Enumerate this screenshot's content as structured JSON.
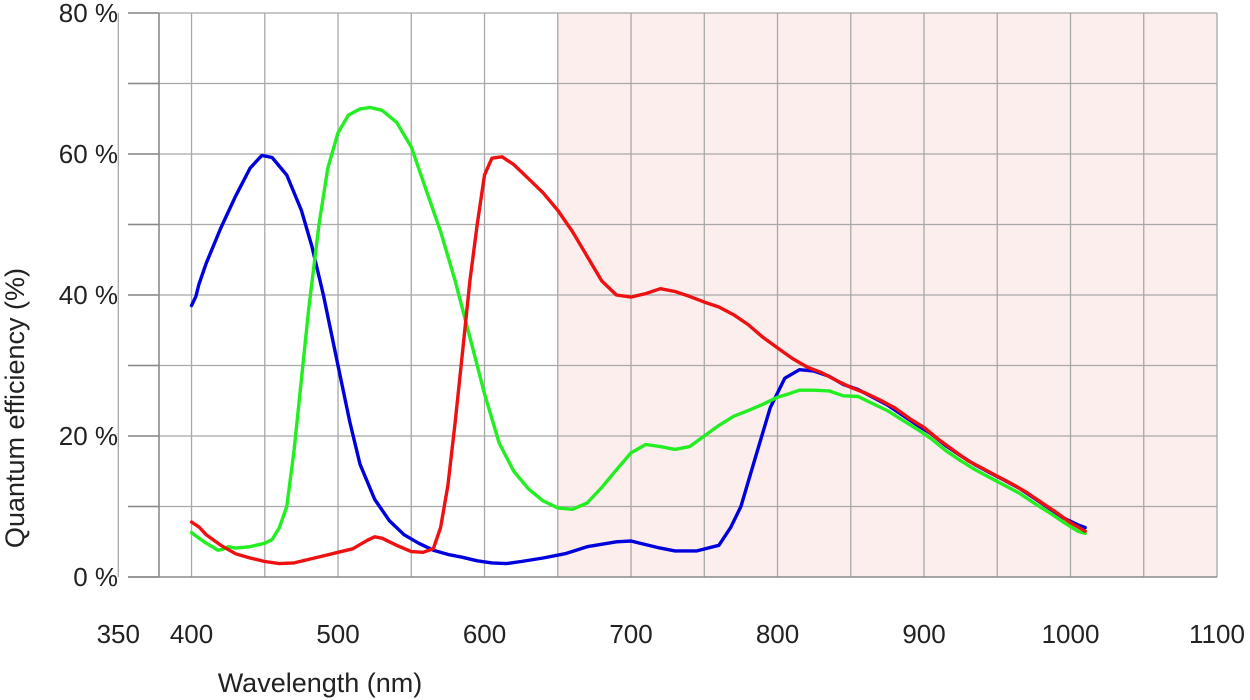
{
  "chart_data": {
    "type": "line",
    "title": "",
    "xlabel": "Wavelength (nm)",
    "ylabel": "Quantum efficiency (%)",
    "xlim": [
      330,
      1100
    ],
    "ylim": [
      0,
      80
    ],
    "x_ticks": [
      350,
      400,
      500,
      600,
      700,
      800,
      900,
      1000,
      1100
    ],
    "x_tick_labels": [
      "350",
      "400",
      "500",
      "600",
      "700",
      "800",
      "900",
      "1000",
      "1100"
    ],
    "y_ticks": [
      0,
      20,
      40,
      60,
      80
    ],
    "y_tick_labels": [
      "0 %",
      "20 %",
      "40 %",
      "60 %",
      "80 %"
    ],
    "x_gridlines": [
      350,
      400,
      450,
      500,
      550,
      600,
      650,
      700,
      750,
      800,
      850,
      900,
      950,
      1000,
      1050,
      1100
    ],
    "y_gridlines": [
      0,
      10,
      20,
      30,
      40,
      50,
      60,
      70,
      80
    ],
    "grid": true,
    "legend": "none",
    "shaded_region": {
      "x_range": [
        650,
        1100
      ],
      "color": "#fdeeee"
    },
    "series": [
      {
        "color": "#0000dd",
        "points": [
          [
            400,
            38.5
          ],
          [
            403,
            39.8
          ],
          [
            405,
            41.5
          ],
          [
            410,
            44.5
          ],
          [
            420,
            49.5
          ],
          [
            430,
            54
          ],
          [
            440,
            58
          ],
          [
            448,
            59.8
          ],
          [
            455,
            59.5
          ],
          [
            465,
            57
          ],
          [
            475,
            52
          ],
          [
            482,
            47
          ],
          [
            490,
            40
          ],
          [
            500,
            30
          ],
          [
            508,
            22
          ],
          [
            515,
            16
          ],
          [
            525,
            11
          ],
          [
            535,
            8
          ],
          [
            545,
            6
          ],
          [
            555,
            4.8
          ],
          [
            565,
            3.8
          ],
          [
            575,
            3.2
          ],
          [
            585,
            2.8
          ],
          [
            595,
            2.3
          ],
          [
            605,
            2
          ],
          [
            615,
            1.9
          ],
          [
            625,
            2.2
          ],
          [
            640,
            2.7
          ],
          [
            655,
            3.3
          ],
          [
            670,
            4.3
          ],
          [
            690,
            5
          ],
          [
            700,
            5.1
          ],
          [
            710,
            4.6
          ],
          [
            720,
            4.1
          ],
          [
            730,
            3.7
          ],
          [
            745,
            3.7
          ],
          [
            760,
            4.5
          ],
          [
            768,
            7
          ],
          [
            775,
            10
          ],
          [
            785,
            17
          ],
          [
            795,
            24
          ],
          [
            805,
            28.2
          ],
          [
            815,
            29.4
          ],
          [
            825,
            29.2
          ],
          [
            835,
            28.5
          ],
          [
            845,
            27.3
          ],
          [
            855,
            26.6
          ],
          [
            865,
            25.5
          ],
          [
            875,
            24.4
          ],
          [
            885,
            23
          ],
          [
            895,
            21.6
          ],
          [
            905,
            20.3
          ],
          [
            915,
            18.6
          ],
          [
            925,
            17.2
          ],
          [
            935,
            15.9
          ],
          [
            945,
            14.8
          ],
          [
            955,
            13.7
          ],
          [
            965,
            12.6
          ],
          [
            975,
            11.2
          ],
          [
            985,
            9.8
          ],
          [
            995,
            8.4
          ],
          [
            1005,
            7.4
          ],
          [
            1010,
            7
          ]
        ]
      },
      {
        "color": "#22ee22",
        "points": [
          [
            400,
            6.3
          ],
          [
            405,
            5.5
          ],
          [
            410,
            4.8
          ],
          [
            415,
            4.2
          ],
          [
            418,
            3.8
          ],
          [
            421,
            3.9
          ],
          [
            425,
            4.3
          ],
          [
            430,
            4.1
          ],
          [
            440,
            4.3
          ],
          [
            450,
            4.8
          ],
          [
            455,
            5.3
          ],
          [
            460,
            7
          ],
          [
            465,
            10
          ],
          [
            470,
            18
          ],
          [
            475,
            28
          ],
          [
            480,
            38
          ],
          [
            487,
            50
          ],
          [
            493,
            58
          ],
          [
            500,
            63
          ],
          [
            507,
            65.5
          ],
          [
            515,
            66.4
          ],
          [
            522,
            66.6
          ],
          [
            530,
            66.2
          ],
          [
            540,
            64.5
          ],
          [
            550,
            61
          ],
          [
            560,
            55
          ],
          [
            570,
            49
          ],
          [
            580,
            42
          ],
          [
            590,
            34
          ],
          [
            600,
            26
          ],
          [
            610,
            19
          ],
          [
            620,
            15
          ],
          [
            630,
            12.5
          ],
          [
            640,
            10.8
          ],
          [
            650,
            9.8
          ],
          [
            660,
            9.6
          ],
          [
            670,
            10.5
          ],
          [
            680,
            12.7
          ],
          [
            690,
            15.2
          ],
          [
            700,
            17.6
          ],
          [
            710,
            18.8
          ],
          [
            720,
            18.5
          ],
          [
            730,
            18.1
          ],
          [
            740,
            18.5
          ],
          [
            750,
            20
          ],
          [
            760,
            21.5
          ],
          [
            770,
            22.8
          ],
          [
            780,
            23.6
          ],
          [
            790,
            24.5
          ],
          [
            800,
            25.5
          ],
          [
            808,
            26
          ],
          [
            815,
            26.5
          ],
          [
            825,
            26.5
          ],
          [
            835,
            26.4
          ],
          [
            845,
            25.7
          ],
          [
            855,
            25.6
          ],
          [
            865,
            24.6
          ],
          [
            875,
            23.6
          ],
          [
            885,
            22.3
          ],
          [
            895,
            21
          ],
          [
            905,
            19.6
          ],
          [
            915,
            17.9
          ],
          [
            925,
            16.5
          ],
          [
            935,
            15.2
          ],
          [
            945,
            14.1
          ],
          [
            955,
            13
          ],
          [
            965,
            11.9
          ],
          [
            975,
            10.5
          ],
          [
            985,
            9.2
          ],
          [
            995,
            7.8
          ],
          [
            1005,
            6.5
          ],
          [
            1010,
            6.2
          ]
        ]
      },
      {
        "color": "#ee1111",
        "points": [
          [
            400,
            7.8
          ],
          [
            405,
            7.1
          ],
          [
            410,
            6
          ],
          [
            420,
            4.5
          ],
          [
            430,
            3.3
          ],
          [
            440,
            2.7
          ],
          [
            450,
            2.2
          ],
          [
            460,
            1.9
          ],
          [
            470,
            2
          ],
          [
            480,
            2.5
          ],
          [
            490,
            3
          ],
          [
            500,
            3.5
          ],
          [
            510,
            4
          ],
          [
            520,
            5.2
          ],
          [
            525,
            5.7
          ],
          [
            530,
            5.5
          ],
          [
            540,
            4.5
          ],
          [
            550,
            3.6
          ],
          [
            558,
            3.5
          ],
          [
            565,
            4
          ],
          [
            570,
            7
          ],
          [
            575,
            13
          ],
          [
            580,
            22
          ],
          [
            585,
            32
          ],
          [
            590,
            42
          ],
          [
            595,
            50
          ],
          [
            600,
            57
          ],
          [
            605,
            59.4
          ],
          [
            612,
            59.6
          ],
          [
            620,
            58.5
          ],
          [
            630,
            56.5
          ],
          [
            640,
            54.5
          ],
          [
            650,
            52
          ],
          [
            660,
            49
          ],
          [
            670,
            45.5
          ],
          [
            680,
            42
          ],
          [
            690,
            40
          ],
          [
            700,
            39.7
          ],
          [
            710,
            40.2
          ],
          [
            720,
            40.9
          ],
          [
            730,
            40.5
          ],
          [
            740,
            39.8
          ],
          [
            750,
            39
          ],
          [
            760,
            38.3
          ],
          [
            770,
            37.2
          ],
          [
            780,
            35.8
          ],
          [
            790,
            34
          ],
          [
            800,
            32.5
          ],
          [
            810,
            31
          ],
          [
            820,
            29.8
          ],
          [
            830,
            29
          ],
          [
            840,
            27.9
          ],
          [
            850,
            26.9
          ],
          [
            860,
            26.1
          ],
          [
            870,
            25.1
          ],
          [
            880,
            24
          ],
          [
            890,
            22.5
          ],
          [
            900,
            21.2
          ],
          [
            910,
            19.5
          ],
          [
            920,
            18
          ],
          [
            930,
            16.5
          ],
          [
            940,
            15.4
          ],
          [
            950,
            14.3
          ],
          [
            960,
            13.2
          ],
          [
            970,
            12
          ],
          [
            980,
            10.6
          ],
          [
            990,
            9.2
          ],
          [
            1000,
            7.7
          ],
          [
            1010,
            6.5
          ]
        ]
      }
    ]
  }
}
